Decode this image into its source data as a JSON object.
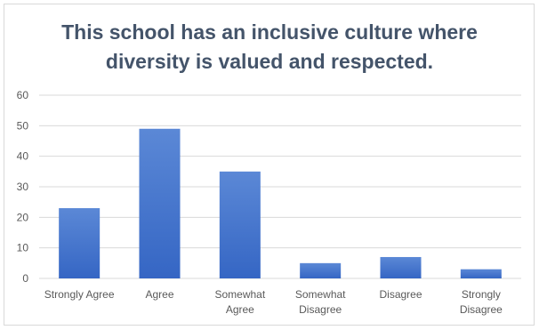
{
  "chart_data": {
    "type": "bar",
    "title_lines": [
      "This school has an inclusive culture where",
      "diversity is valued and respected."
    ],
    "categories": [
      [
        "Strongly Agree"
      ],
      [
        "Agree"
      ],
      [
        "Somewhat",
        "Agree"
      ],
      [
        "Somewhat",
        "Disagree"
      ],
      [
        "Disagree"
      ],
      [
        "Strongly",
        "Disagree"
      ]
    ],
    "values": [
      23,
      49,
      35,
      5,
      7,
      3
    ],
    "xlabel": "",
    "ylabel": "",
    "ylim": [
      0,
      60
    ],
    "yticks": [
      0,
      10,
      20,
      30,
      40,
      50,
      60
    ],
    "grid": true,
    "legend": "none",
    "bar_color_top": "#5b88d6",
    "bar_color_bottom": "#3566c4",
    "grid_color": "#d9d9d9",
    "title_color": "#44546a",
    "tick_color": "#595959"
  }
}
